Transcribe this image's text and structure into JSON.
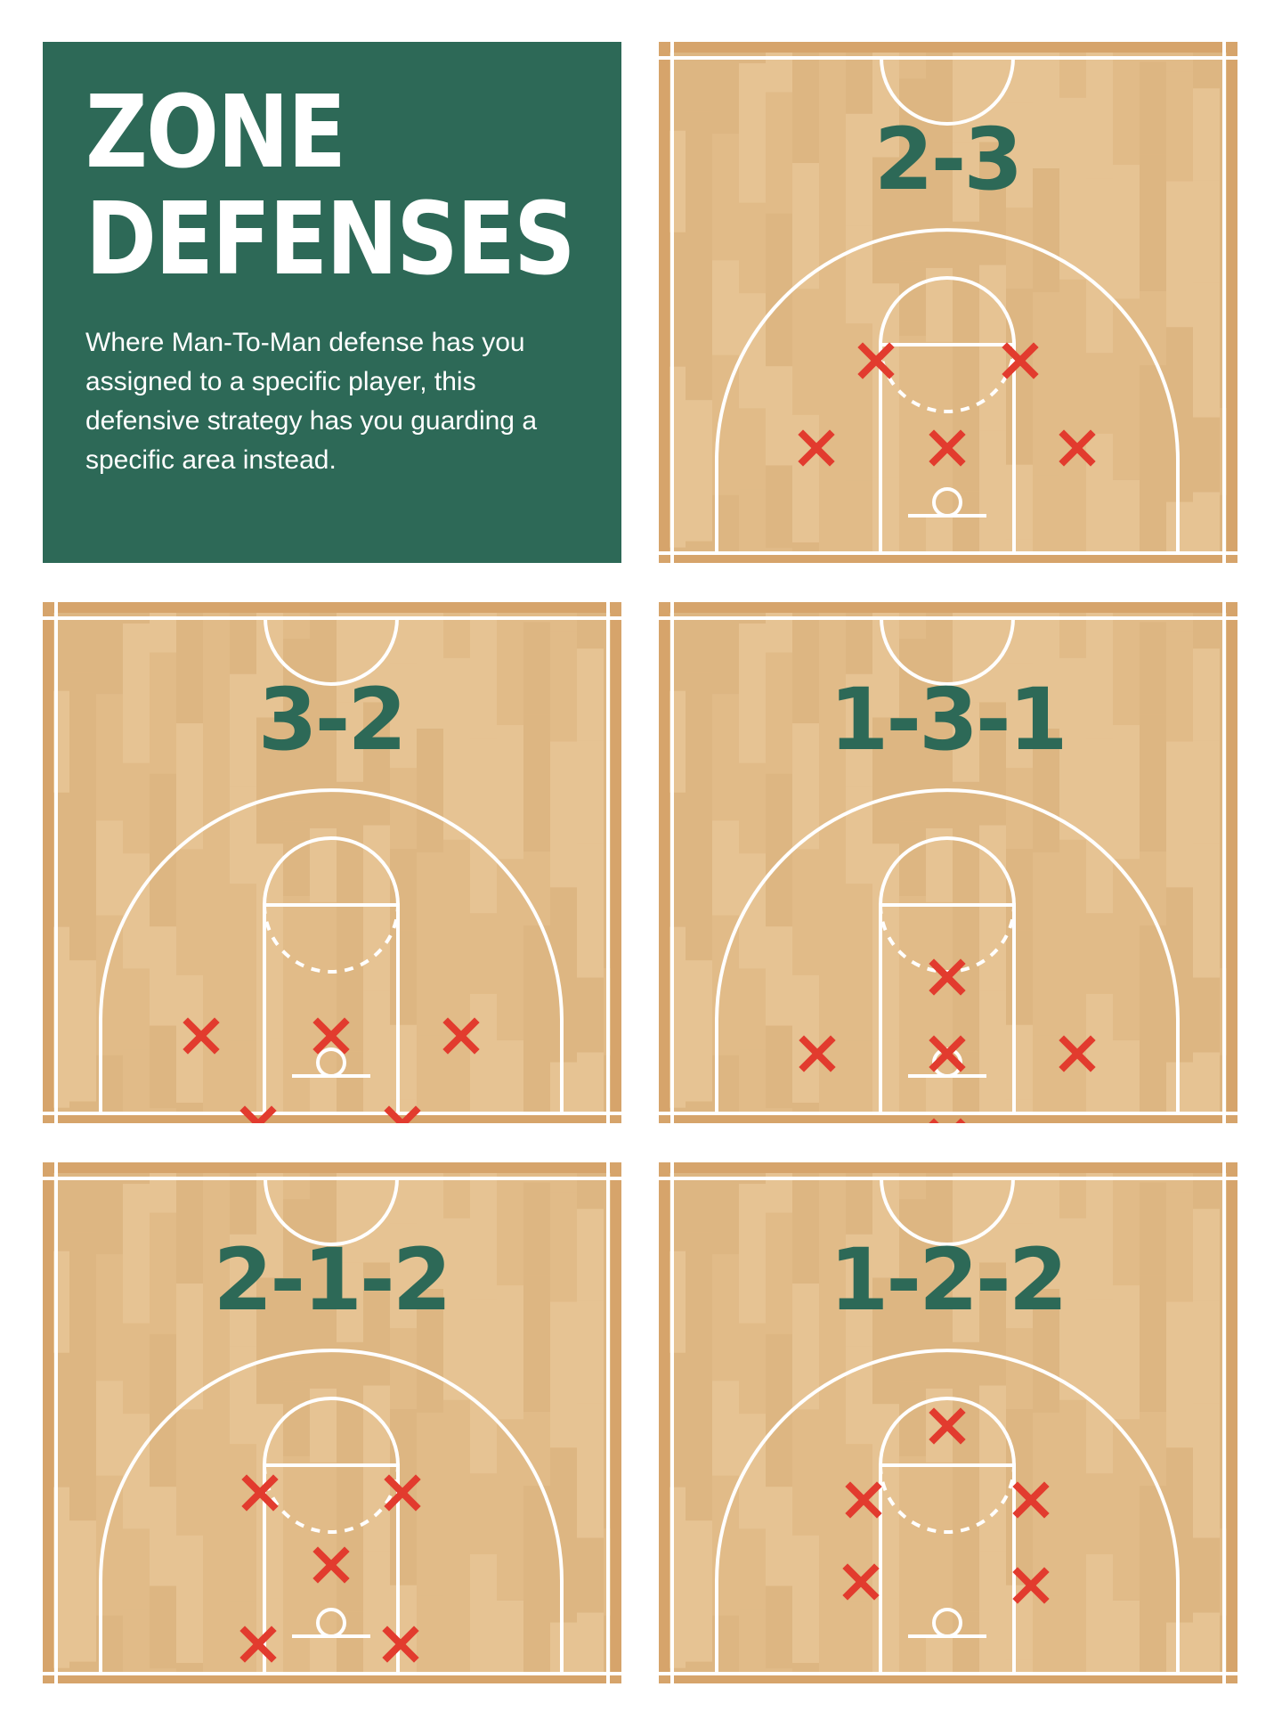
{
  "intro": {
    "title_line1": "ZONE",
    "title_line2": "DEFENSES",
    "description": "Where Man-To-Man defense has you assigned to a specific player, this defensive strategy has you guarding a specific area instead."
  },
  "colors": {
    "panel_green": "#2d6957",
    "court_wood": "#e3bd8a",
    "court_border": "#d6a46b",
    "court_lines": "#ffffff",
    "defender_marker": "#e23b2e",
    "label_green": "#2d6957"
  },
  "formations": [
    {
      "label": "2-3",
      "defenders": 5,
      "defender_icon": "x-icon"
    },
    {
      "label": "3-2",
      "defenders": 5,
      "defender_icon": "x-icon"
    },
    {
      "label": "1-3-1",
      "defenders": 5,
      "defender_icon": "x-icon"
    },
    {
      "label": "2-1-2",
      "defenders": 5,
      "defender_icon": "x-icon"
    },
    {
      "label": "1-2-2",
      "defenders": 5,
      "defender_icon": "x-icon"
    }
  ]
}
